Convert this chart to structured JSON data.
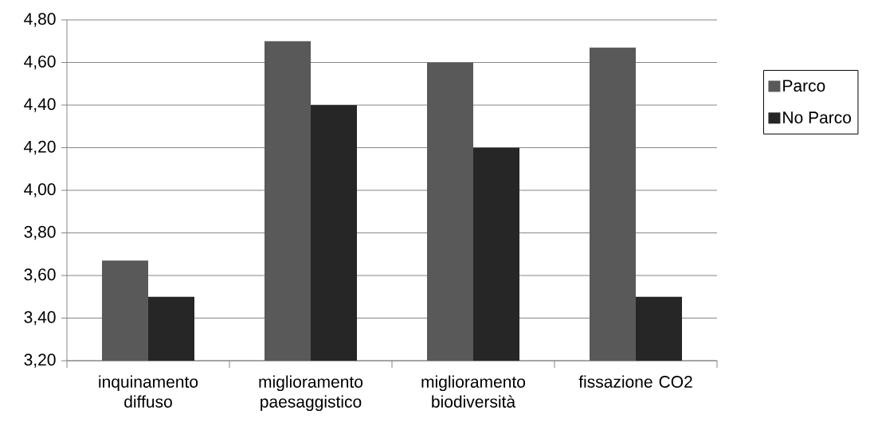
{
  "chart_data": {
    "type": "bar",
    "categories": [
      "inquinamento diffuso",
      "miglioramento paesaggistico",
      "miglioramento biodiversità",
      "fissazione CO2"
    ],
    "series": [
      {
        "name": "Parco",
        "color": "#595959",
        "values": [
          3.67,
          4.7,
          4.6,
          4.67
        ]
      },
      {
        "name": "No Parco",
        "color": "#262626",
        "values": [
          3.5,
          4.4,
          4.2,
          3.5
        ]
      }
    ],
    "ylim": [
      3.2,
      4.8
    ],
    "yticks": [
      {
        "value": 3.2,
        "label": "3,20"
      },
      {
        "value": 3.4,
        "label": "3,40"
      },
      {
        "value": 3.6,
        "label": "3,60"
      },
      {
        "value": 3.8,
        "label": "3,80"
      },
      {
        "value": 4.0,
        "label": "4,00"
      },
      {
        "value": 4.2,
        "label": "4,20"
      },
      {
        "value": 4.4,
        "label": "4,40"
      },
      {
        "value": 4.6,
        "label": "4,60"
      },
      {
        "value": 4.8,
        "label": "4,80"
      }
    ],
    "grid": "y",
    "legend": "right"
  }
}
